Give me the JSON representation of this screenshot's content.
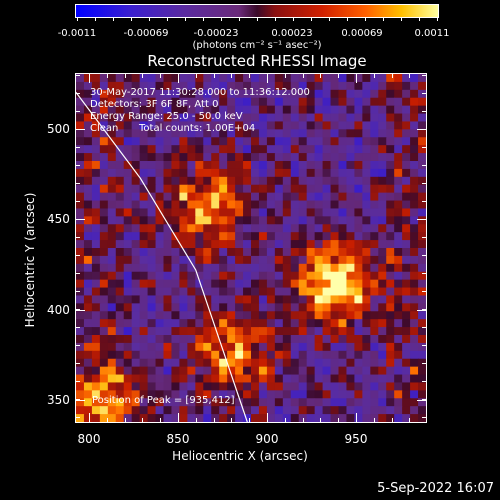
{
  "colorbar": {
    "ticks": [
      "-0.0011",
      "-0.00069",
      "-0.00023",
      "0.00023",
      "0.00069",
      "0.0011"
    ],
    "unit_label": "(photons cm⁻² s⁻¹ asec⁻²)"
  },
  "title": "Reconstructed RHESSI Image",
  "info": {
    "time_range": "30-May-2017 11:30:28.000 to 11:36:12.000",
    "detectors": "Detectors: 3F 6F 8F, Att 0",
    "energy": "Energy Range: 25.0 - 50.0 keV",
    "algorithm": "Clean",
    "counts": "Total counts: 1.00E+04",
    "peak": "Position of Peak = [935,412]"
  },
  "axes": {
    "x_label": "Heliocentric X (arcsec)",
    "y_label": "Heliocentric Y (arcsec)",
    "x_ticks": [
      "800",
      "850",
      "900",
      "950"
    ],
    "y_ticks": [
      "500",
      "450",
      "400",
      "350"
    ]
  },
  "date_stamp": "5-Sep-2022 16:07",
  "chart_data": {
    "type": "heatmap",
    "title": "Reconstructed RHESSI Image",
    "xlabel": "Heliocentric X (arcsec)",
    "ylabel": "Heliocentric Y (arcsec)",
    "xlim": [
      795,
      985
    ],
    "ylim": [
      337,
      527
    ],
    "colorbar_range": [
      -0.0011,
      0.0011
    ],
    "peak_position": [
      935,
      412
    ],
    "sources": [
      {
        "x": 935,
        "y": 412,
        "intensity": 1.0
      },
      {
        "x": 865,
        "y": 455,
        "intensity": 0.75
      },
      {
        "x": 880,
        "y": 375,
        "intensity": 0.7
      },
      {
        "x": 810,
        "y": 345,
        "intensity": 0.65
      }
    ],
    "limb_curve": [
      [
        795,
        517
      ],
      [
        830,
        470
      ],
      [
        860,
        420
      ],
      [
        888,
        337
      ]
    ]
  }
}
